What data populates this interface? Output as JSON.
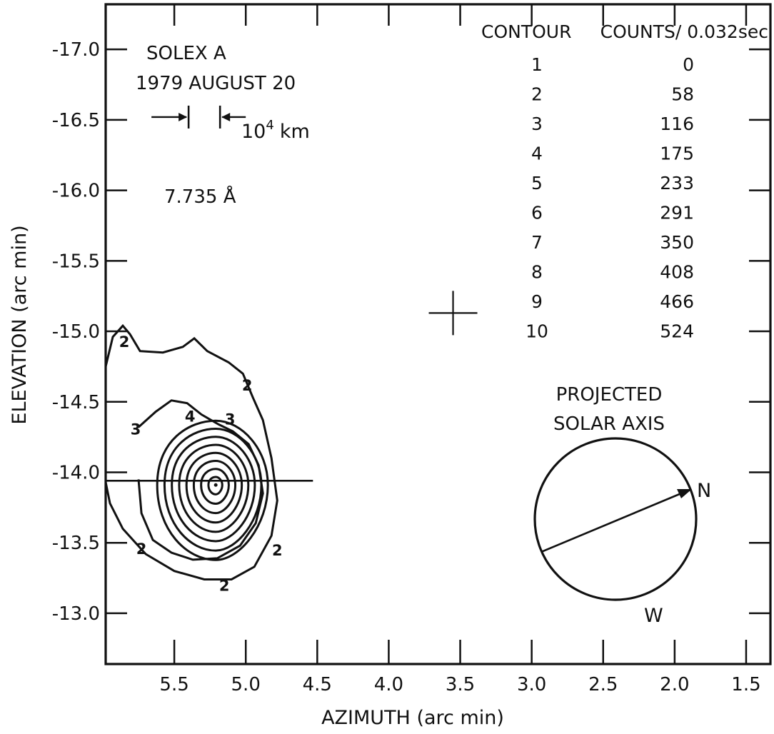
{
  "chart_data": {
    "type": "contour",
    "xlabel": "AZIMUTH (arc min)",
    "ylabel": "ELEVATION (arc min)",
    "xlim": [
      5.98,
      1.33
    ],
    "ylim": [
      -12.64,
      -17.32
    ],
    "x_ticks": [
      5.5,
      5.0,
      4.5,
      4.0,
      3.5,
      3.0,
      2.5,
      2.0,
      1.5
    ],
    "x_tick_labels": [
      "5.5",
      "5.0",
      "4.5",
      "4.0",
      "3.5",
      "3.0",
      "2.5",
      "2.0",
      "1.5"
    ],
    "y_ticks": [
      -17.0,
      -16.5,
      -16.0,
      -15.5,
      -15.0,
      -14.5,
      -14.0,
      -13.5,
      -13.0
    ],
    "y_tick_labels": [
      "-17.0",
      "-16.5",
      "-16.0",
      "-15.5",
      "-15.0",
      "-14.5",
      "-14.0",
      "-13.5",
      "-13.0"
    ],
    "grid": false,
    "annotations": {
      "instrument": "SOLEX A",
      "date": "1979 AUGUST 20",
      "scale_label": "10",
      "scale_exponent": "4",
      "scale_unit": "km",
      "wavelength": "7.735 Å"
    },
    "scale_bar_x": [
      5.4,
      5.18
    ],
    "reference_cross": {
      "x": 3.55,
      "y": -15.13
    },
    "slice_line": {
      "x_from": 5.98,
      "x_to": 4.53,
      "y": -13.94
    },
    "table": {
      "header_contour": "CONTOUR",
      "header_counts": "COUNTS/ 0.032sec",
      "rows": [
        {
          "contour": "1",
          "counts": "0"
        },
        {
          "contour": "2",
          "counts": "58"
        },
        {
          "contour": "3",
          "counts": "116"
        },
        {
          "contour": "4",
          "counts": "175"
        },
        {
          "contour": "5",
          "counts": "233"
        },
        {
          "contour": "6",
          "counts": "291"
        },
        {
          "contour": "7",
          "counts": "350"
        },
        {
          "contour": "8",
          "counts": "408"
        },
        {
          "contour": "9",
          "counts": "466"
        },
        {
          "contour": "10",
          "counts": "524"
        }
      ]
    },
    "solar_axis": {
      "title_line1": "PROJECTED",
      "title_line2": "SOLAR AXIS",
      "north_label": "N",
      "west_label": "W"
    },
    "contours": [
      {
        "level": 2,
        "points": [
          [
            5.98,
            -14.75
          ],
          [
            5.93,
            -14.96
          ],
          [
            5.86,
            -15.04
          ],
          [
            5.81,
            -14.98
          ],
          [
            5.74,
            -14.86
          ],
          [
            5.58,
            -14.85
          ],
          [
            5.44,
            -14.89
          ],
          [
            5.36,
            -14.95
          ],
          [
            5.27,
            -14.86
          ],
          [
            5.12,
            -14.78
          ],
          [
            5.02,
            -14.7
          ],
          [
            4.95,
            -14.53
          ],
          [
            4.88,
            -14.37
          ],
          [
            4.82,
            -14.1
          ],
          [
            4.78,
            -13.8
          ],
          [
            4.82,
            -13.55
          ],
          [
            4.94,
            -13.33
          ],
          [
            5.1,
            -13.24
          ],
          [
            5.29,
            -13.24
          ],
          [
            5.5,
            -13.3
          ],
          [
            5.7,
            -13.42
          ],
          [
            5.86,
            -13.6
          ],
          [
            5.95,
            -13.78
          ],
          [
            5.98,
            -13.93
          ]
        ]
      },
      {
        "level": 3,
        "points": [
          [
            5.75,
            -14.32
          ],
          [
            5.63,
            -14.43
          ],
          [
            5.52,
            -14.51
          ],
          [
            5.41,
            -14.49
          ],
          [
            5.31,
            -14.41
          ],
          [
            5.19,
            -14.34
          ],
          [
            5.09,
            -14.29
          ],
          [
            4.98,
            -14.2
          ],
          [
            4.91,
            -14.05
          ],
          [
            4.88,
            -13.85
          ],
          [
            4.93,
            -13.64
          ],
          [
            5.04,
            -13.48
          ],
          [
            5.2,
            -13.39
          ],
          [
            5.37,
            -13.38
          ],
          [
            5.52,
            -13.43
          ],
          [
            5.65,
            -13.52
          ],
          [
            5.73,
            -13.71
          ],
          [
            5.75,
            -13.95
          ]
        ]
      }
    ],
    "labels": [
      {
        "text": "2",
        "x": 5.85,
        "y": -14.93
      },
      {
        "text": "2",
        "x": 4.99,
        "y": -14.62
      },
      {
        "text": "3",
        "x": 5.77,
        "y": -14.31
      },
      {
        "text": "4",
        "x": 5.39,
        "y": -14.4
      },
      {
        "text": "3",
        "x": 5.11,
        "y": -14.38
      },
      {
        "text": "2",
        "x": 5.73,
        "y": -13.46
      },
      {
        "text": "2",
        "x": 4.78,
        "y": -13.45
      },
      {
        "text": "2",
        "x": 5.15,
        "y": -13.2
      }
    ]
  }
}
